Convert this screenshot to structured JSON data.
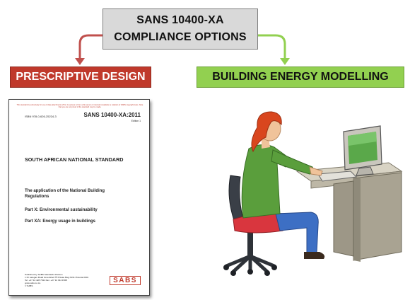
{
  "diagram": {
    "top_box": {
      "line1": "SANS 10400-XA",
      "line2": "COMPLIANCE OPTIONS"
    },
    "left_option": {
      "label": "PRESCRIPTIVE DESIGN"
    },
    "right_option": {
      "label": "BUILDING ENERGY MODELLING"
    },
    "colors": {
      "top_fill": "#d9d9d9",
      "left_fill": "#c0392b",
      "left_arrow": "#c0504d",
      "right_fill": "#92d050",
      "right_arrow": "#92d050"
    }
  },
  "document": {
    "notice": "This standard is exclusively for use of data attachments (TC). Its access is from a file server or internal compilation a violation of SABS copyright rules. Note that you are not proud of the standard may be made.",
    "isbn": "ISBN 978-0-626-25224-3",
    "code": "SANS 10400-XA:2011",
    "edition": "Edition 1",
    "title": "SOUTH AFRICAN NATIONAL STANDARD",
    "application_line1": "The application of the National Building",
    "application_line2": "Regulations",
    "part_x": "Part X: Environmental sustainability",
    "part_xa": "Part XA: Energy usage in buildings",
    "footer": [
      "Published by SABS Standards Division",
      "1 Dr Lategan Road Groenkloof ☒ Private Bag X191 Pretoria 0001",
      "Tel: +27 12 428 7911 Fax: +27 12 344 1568",
      "www.sabs.co.za",
      "© SABS"
    ],
    "logo_text": "SABS"
  }
}
